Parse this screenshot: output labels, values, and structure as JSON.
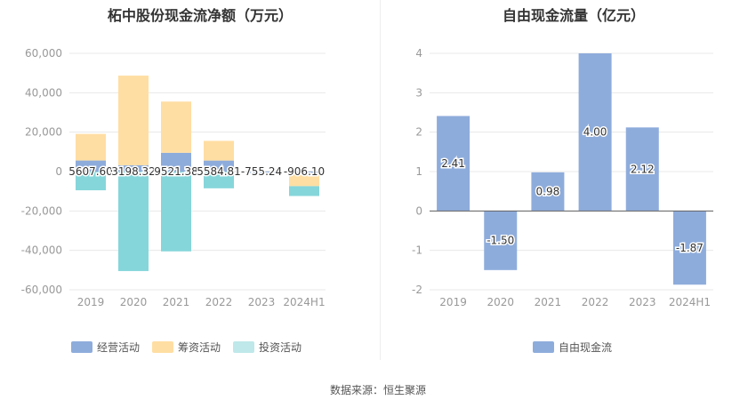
{
  "source": "数据来源：恒生聚源",
  "colors": {
    "operating": "#8eacdb",
    "financing": "#ffdea3",
    "investing": "#85d6da",
    "fcf": "#8eacdb"
  },
  "chart_data": [
    {
      "type": "bar",
      "stacked": true,
      "title": "柘中股份现金流净额（万元）",
      "categories": [
        "2019",
        "2020",
        "2021",
        "2022",
        "2023",
        "2024H1"
      ],
      "ylim": [
        -60000,
        60000
      ],
      "yticks": [
        "60,000",
        "40,000",
        "20,000",
        "0",
        "-20,000",
        "-40,000",
        "-60,000"
      ],
      "ytick_values": [
        60000,
        40000,
        20000,
        0,
        -20000,
        -40000,
        -60000
      ],
      "legend_position": "bottom",
      "series": [
        {
          "name": "经营活动",
          "key": "operating",
          "values": [
            5607.6,
            3198.32,
            9521.38,
            5584.81,
            -755.24,
            -906.1
          ]
        },
        {
          "name": "筹资活动",
          "key": "financing",
          "values": [
            13500,
            45500,
            26000,
            10000,
            0,
            -6500
          ]
        },
        {
          "name": "投资活动",
          "key": "investing",
          "values": [
            -9500,
            -50500,
            -40500,
            -8500,
            0,
            -5000
          ]
        }
      ],
      "data_labels": [
        "5607.60",
        "3198.32",
        "9521.38",
        "5584.81",
        "-755.24",
        "-906.10"
      ]
    },
    {
      "type": "bar",
      "title": "自由现金流量（亿元）",
      "categories": [
        "2019",
        "2020",
        "2021",
        "2022",
        "2023",
        "2024H1"
      ],
      "ylim": [
        -2,
        4
      ],
      "yticks": [
        "4",
        "3",
        "2",
        "1",
        "0",
        "-1",
        "-2"
      ],
      "ytick_values": [
        4,
        3,
        2,
        1,
        0,
        -1,
        -2
      ],
      "legend_position": "bottom",
      "series": [
        {
          "name": "自由现金流",
          "key": "fcf",
          "values": [
            2.41,
            -1.5,
            0.98,
            4.0,
            2.12,
            -1.87
          ]
        }
      ],
      "data_labels": [
        "2.41",
        "-1.50",
        "0.98",
        "4.00",
        "2.12",
        "-1.87"
      ]
    }
  ]
}
